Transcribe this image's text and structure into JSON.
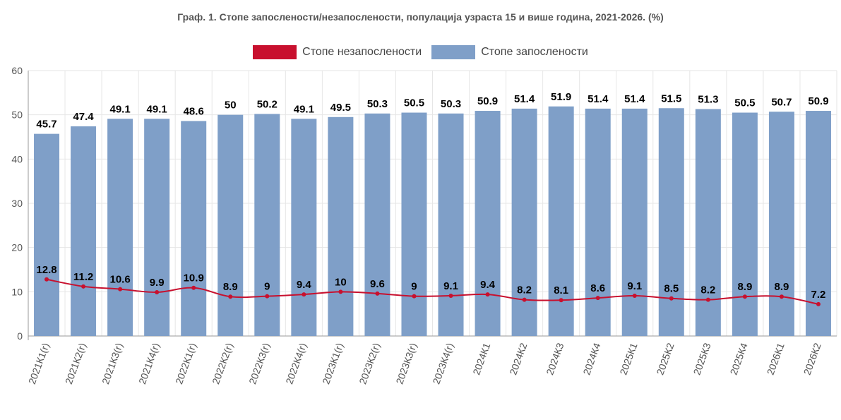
{
  "colors": {
    "employment": "#7f9fc8",
    "unemployment": "#c8102e",
    "grid": "#e6e6e6",
    "axis": "#999999",
    "tick_text": "#555555",
    "label_text": "#000000"
  },
  "chart_data": {
    "type": "bar",
    "title": "Граф. 1. Стопе запослености/незапослености, популација узраста 15 и више година, 2021-2026. (%)",
    "legend_position": "top",
    "grid": true,
    "ylim": [
      0,
      60
    ],
    "yticks": [
      0,
      10,
      20,
      30,
      40,
      50,
      60
    ],
    "categories": [
      "2021К1(r)",
      "2021К2(r)",
      "2021К3(r)",
      "2021К4(r)",
      "2022К1(r)",
      "2022К2(r)",
      "2022К3(r)",
      "2022К4(r)",
      "2023К1(r)",
      "2023К2(r)",
      "2023К3(r)",
      "2023К4(r)",
      "2024К1",
      "2024К2",
      "2024К3",
      "2024К4",
      "2025К1",
      "2025К2",
      "2025К3",
      "2025К4",
      "2026К1",
      "2026К2"
    ],
    "series": [
      {
        "name": "Стопе незапослености",
        "type": "line",
        "values": [
          12.8,
          11.2,
          10.6,
          9.9,
          10.9,
          8.9,
          9,
          9.4,
          10,
          9.6,
          9,
          9.1,
          9.4,
          8.2,
          8.1,
          8.6,
          9.1,
          8.5,
          8.2,
          8.9,
          8.9,
          7.2
        ]
      },
      {
        "name": "Стопе запослености",
        "type": "bar",
        "values": [
          45.7,
          47.4,
          49.1,
          49.1,
          48.6,
          50,
          50.2,
          49.1,
          49.5,
          50.3,
          50.5,
          50.3,
          50.9,
          51.4,
          51.9,
          51.4,
          51.4,
          51.5,
          51.3,
          50.5,
          50.7,
          50.9
        ]
      }
    ]
  }
}
